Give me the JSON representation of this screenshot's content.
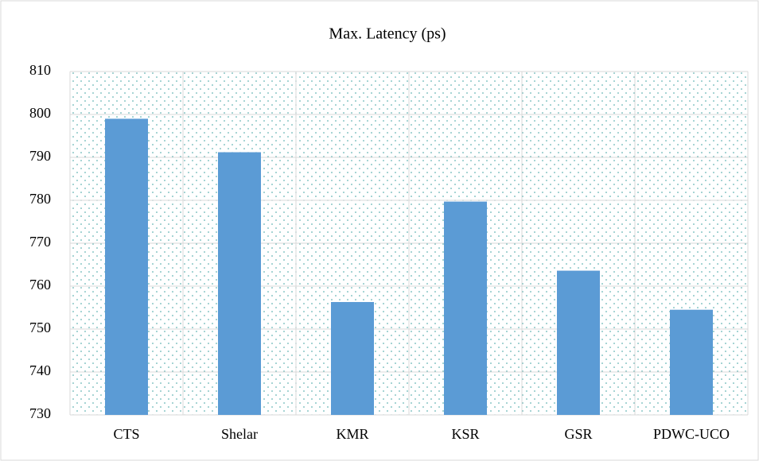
{
  "chart_data": {
    "type": "bar",
    "title": "Max. Latency (ps)",
    "categories": [
      "CTS",
      "Shelar",
      "KMR",
      "KSR",
      "GSR",
      "PDWC-UCO"
    ],
    "values": [
      799,
      791.2,
      756.3,
      779.7,
      763.6,
      754.5
    ],
    "color": "#5b9bd5",
    "ylim": [
      730,
      810
    ],
    "yticks": [
      730,
      740,
      750,
      760,
      770,
      780,
      790,
      800,
      810
    ],
    "grid": true
  }
}
